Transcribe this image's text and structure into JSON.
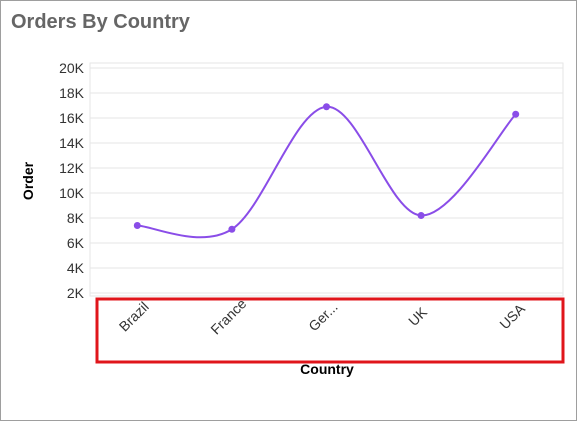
{
  "widget": {
    "title": "Orders By Country"
  },
  "chart_data": {
    "type": "line",
    "curve": "spline",
    "title": "Orders By Country",
    "xlabel": "Country",
    "ylabel": "Order",
    "categories": [
      "Brazil",
      "France",
      "Germany",
      "UK",
      "USA"
    ],
    "category_labels": [
      "Brazil",
      "France",
      "Ger...",
      "UK",
      "USA"
    ],
    "series": [
      {
        "values": [
          7400,
          7100,
          16900,
          8200,
          16300
        ]
      }
    ],
    "yticks": [
      2000,
      4000,
      6000,
      8000,
      10000,
      12000,
      14000,
      16000,
      18000,
      20000
    ],
    "ytick_labels": [
      "2K",
      "4K",
      "6K",
      "8K",
      "10K",
      "12K",
      "14K",
      "16K",
      "18K",
      "20K"
    ],
    "ylim": [
      2000,
      20000
    ],
    "grid": true,
    "legend": "none",
    "colors": {
      "line": "#8a4de8",
      "grid": "#e6e6e6",
      "highlight": "#e0151b"
    }
  }
}
